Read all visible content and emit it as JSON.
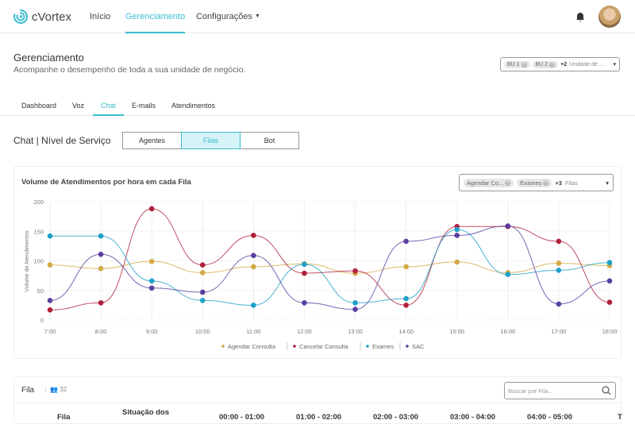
{
  "app": {
    "name": "cVortex"
  },
  "nav": {
    "items": [
      "Início",
      "Gerenciamento",
      "Configurações"
    ],
    "active": "Gerenciamento"
  },
  "page": {
    "title": "Gerenciamento",
    "subtitle": "Acompanhe o desempenho de toda a sua unidade de negócio."
  },
  "bu_select": {
    "chips": [
      "BU 1",
      "BU 2"
    ],
    "more": "+2",
    "placeholder": "Unidade de ..."
  },
  "tabs": {
    "items": [
      "Dashboard",
      "Voz",
      "Chat",
      "E-mails",
      "Atendimentos"
    ],
    "active": "Chat"
  },
  "section": {
    "title": "Chat | Nível de Serviço",
    "segments": [
      "Agentes",
      "Filas",
      "Bot"
    ],
    "active": "Filas"
  },
  "chart_card": {
    "title": "Volume de Atendimentos por hora em cada Fila",
    "filter": {
      "chips": [
        "Agendar Co...",
        "Exames"
      ],
      "more": "+3",
      "placeholder": "Filas"
    }
  },
  "chart_data": {
    "type": "line",
    "ylabel": "Volume de Atendimentos",
    "ylim": [
      0,
      200
    ],
    "yticks": [
      0,
      50,
      100,
      150,
      200
    ],
    "grid": true,
    "legend": "bottom",
    "categories": [
      "7:00",
      "8:00",
      "9:00",
      "10:00",
      "11:00",
      "12:00",
      "13:00",
      "14:00",
      "15:00",
      "16:00",
      "17:00",
      "18:00"
    ],
    "series": [
      {
        "name": "Agendar Consulta",
        "color": "#d4a843",
        "values": [
          93,
          87,
          99,
          80,
          90,
          95,
          79,
          90,
          98,
          80,
          96,
          92
        ]
      },
      {
        "name": "Cancelar Consulta",
        "color": "#b0203a",
        "values": [
          17,
          29,
          188,
          93,
          143,
          79,
          83,
          25,
          158,
          158,
          133,
          30
        ]
      },
      {
        "name": "Exames",
        "color": "#1ea0c8",
        "values": [
          142,
          142,
          66,
          33,
          25,
          94,
          29,
          36,
          153,
          77,
          84,
          97
        ]
      },
      {
        "name": "SAC",
        "color": "#5a3fa0",
        "values": [
          33,
          111,
          54,
          47,
          109,
          29,
          18,
          133,
          143,
          159,
          27,
          66
        ]
      }
    ]
  },
  "table": {
    "title": "Fila",
    "count": "32",
    "search_placeholder": "Buscar por Fila...",
    "headers": [
      "Fila",
      "Situação dos",
      "00:00 - 01:00",
      "01:00 - 02:00",
      "02:00 - 03:00",
      "03:00 - 04:00",
      "04:00 - 05:00",
      "T"
    ]
  }
}
